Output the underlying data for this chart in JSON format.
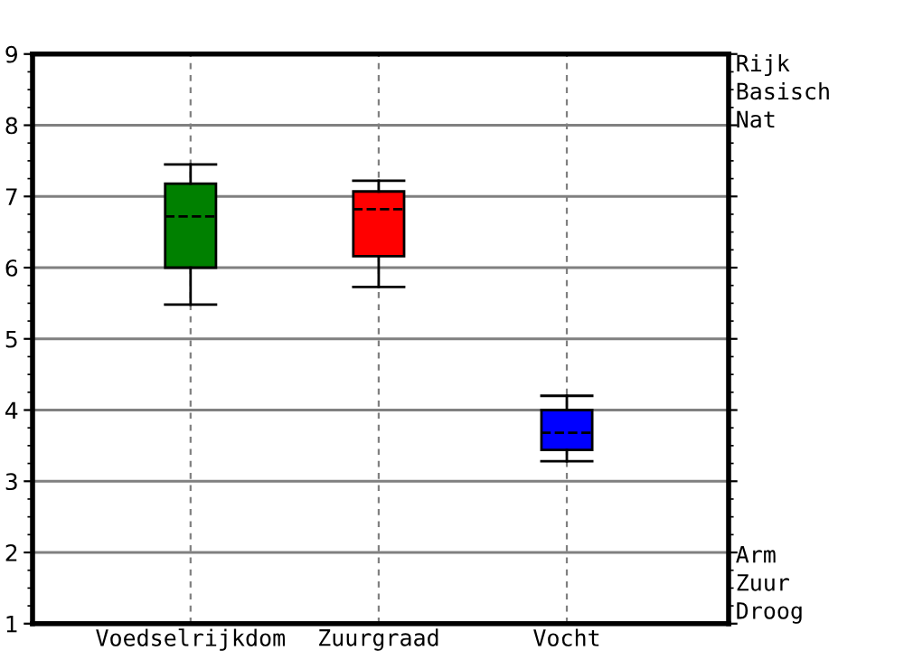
{
  "chart_data": {
    "type": "box",
    "categories": [
      "Voedselrijkdom",
      "Zuurgraad",
      "Vocht"
    ],
    "colors": [
      "#008000",
      "#ff0000",
      "#0000ff"
    ],
    "boxes": [
      {
        "low": 5.48,
        "q1": 6.0,
        "median": 6.72,
        "q3": 7.18,
        "high": 7.45
      },
      {
        "low": 5.73,
        "q1": 6.16,
        "median": 6.82,
        "q3": 7.07,
        "high": 7.22
      },
      {
        "low": 3.28,
        "q1": 3.44,
        "median": 3.68,
        "q3": 4.0,
        "high": 4.2
      }
    ],
    "ylim": [
      1,
      9
    ],
    "yticks": [
      1,
      2,
      3,
      4,
      5,
      6,
      7,
      8,
      9
    ],
    "annotations": [
      "Rijk\nBasisch\nNat",
      "Arm\nZuur\nDroog"
    ],
    "grid": true
  }
}
